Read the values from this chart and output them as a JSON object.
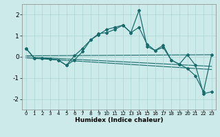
{
  "title": "",
  "xlabel": "Humidex (Indice chaleur)",
  "bg_color": "#cceaea",
  "line_color": "#1a6b6b",
  "grid_color": "#aad4d4",
  "xlim": [
    -0.5,
    23.5
  ],
  "ylim": [
    -2.5,
    2.5
  ],
  "yticks": [
    -2,
    -1,
    0,
    1,
    2
  ],
  "xticks": [
    0,
    1,
    2,
    3,
    4,
    5,
    6,
    7,
    8,
    9,
    10,
    11,
    12,
    13,
    14,
    15,
    16,
    17,
    18,
    19,
    20,
    21,
    22,
    23
  ],
  "series1_x": [
    0,
    1,
    2,
    3,
    4,
    5,
    6,
    7,
    8,
    9,
    10,
    11,
    12,
    13,
    14,
    15,
    16,
    17,
    18,
    19,
    20,
    21,
    22,
    23
  ],
  "series1_y": [
    0.4,
    -0.05,
    -0.05,
    -0.1,
    -0.15,
    -0.4,
    -0.15,
    0.25,
    0.8,
    1.1,
    1.15,
    1.3,
    1.5,
    1.15,
    2.2,
    0.5,
    0.3,
    0.55,
    -0.15,
    -0.35,
    0.1,
    -0.4,
    -1.75,
    -1.65
  ],
  "series2_x": [
    0,
    1,
    2,
    3,
    4,
    5,
    6,
    7,
    8,
    9,
    10,
    11,
    12,
    13,
    14,
    15,
    16,
    17,
    18,
    19,
    20,
    21,
    22,
    23
  ],
  "series2_y": [
    0.4,
    -0.05,
    -0.05,
    -0.1,
    -0.15,
    -0.4,
    0.05,
    0.4,
    0.8,
    1.05,
    1.3,
    1.4,
    1.5,
    1.15,
    1.4,
    0.6,
    0.3,
    0.45,
    -0.15,
    -0.35,
    -0.55,
    -0.9,
    -1.65,
    0.1
  ],
  "line3_x": [
    0,
    23
  ],
  "line3_y": [
    0.05,
    0.1
  ],
  "line4_x": [
    0,
    23
  ],
  "line4_y": [
    -0.0,
    -0.45
  ],
  "line5_x": [
    0,
    23
  ],
  "line5_y": [
    -0.05,
    -0.6
  ]
}
